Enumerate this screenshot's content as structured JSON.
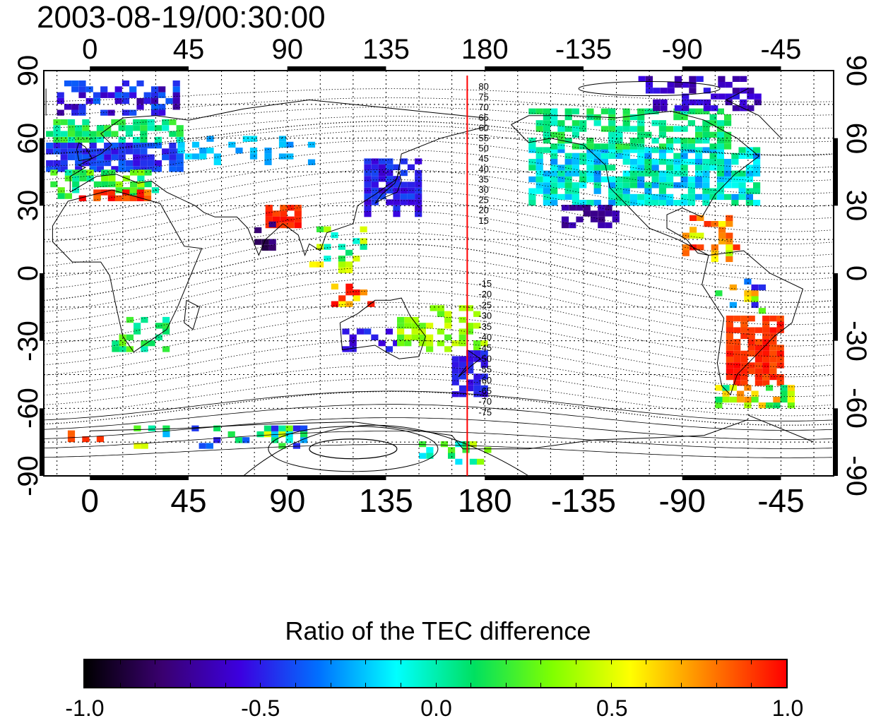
{
  "timestamp": "2003-08-19/00:30:00",
  "map": {
    "top_lon_labels": [
      "0",
      "45",
      "90",
      "135",
      "180",
      "-135",
      "-90",
      "-45"
    ],
    "bottom_lon_labels": [
      "0",
      "45",
      "90",
      "135",
      "180",
      "-135",
      "-90",
      "-45"
    ],
    "left_lat_labels": [
      "90",
      "60",
      "30",
      "0",
      "-30",
      "-60",
      "-90"
    ],
    "right_lat_labels": [
      "90",
      "60",
      "30",
      "0",
      "-30",
      "-60",
      "-90"
    ],
    "meridian_marker_lon": 172,
    "meridian_marker_color": "#ff0000",
    "contour_labels_north": [
      "80",
      "75",
      "70",
      "65",
      "60",
      "55",
      "50",
      "45",
      "40",
      "35",
      "30",
      "25",
      "20",
      "15"
    ],
    "contour_labels_south": [
      "-15",
      "-20",
      "-25",
      "-30",
      "-35",
      "-40",
      "-45",
      "-50",
      "-55",
      "-60",
      "-65",
      "-70",
      "-75"
    ]
  },
  "colorbar": {
    "title": "Ratio of the TEC difference",
    "tick_labels": [
      "-1.0",
      "-0.5",
      "0.0",
      "0.5",
      "1.0"
    ],
    "min": -1.0,
    "max": 1.0,
    "colors": [
      "#000000",
      "#3a0070",
      "#3c00e0",
      "#0070ff",
      "#00ffff",
      "#00e060",
      "#80ff00",
      "#ffff00",
      "#ff8000",
      "#ff0000"
    ]
  }
}
